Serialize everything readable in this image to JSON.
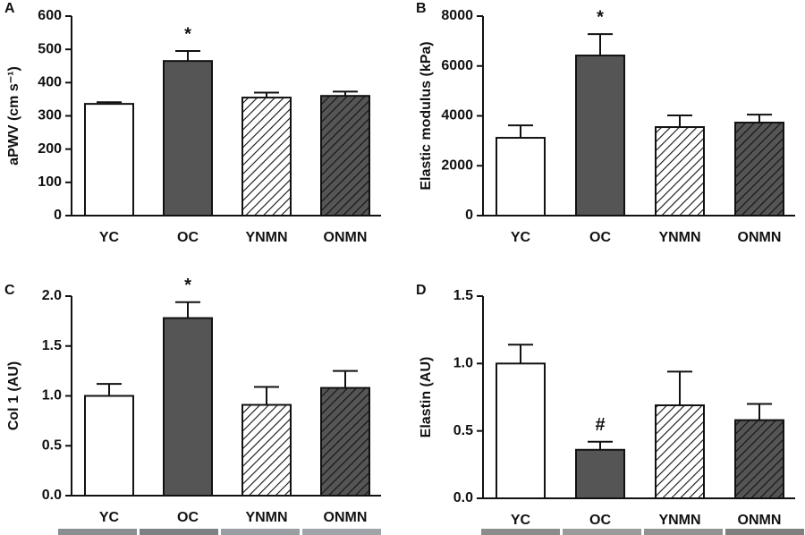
{
  "chart_data": [
    {
      "type": "bar",
      "panel": "A",
      "y_label": "aPWV (cm s⁻¹)",
      "categories": [
        "YC",
        "OC",
        "YNMN",
        "ONMN"
      ],
      "values": [
        336,
        465,
        355,
        360
      ],
      "errors": [
        5,
        30,
        15,
        13
      ],
      "colors": [
        "#ffffff",
        "#555555",
        "#ffffff",
        "#555555"
      ],
      "hatch": [
        false,
        false,
        true,
        true
      ],
      "ylim": [
        0,
        600
      ],
      "yticks": [
        0,
        100,
        200,
        300,
        400,
        500,
        600
      ],
      "annotation": {
        "text": "*",
        "category": "OC"
      }
    },
    {
      "type": "bar",
      "panel": "B",
      "y_label": "Elastic modulus (kPa)",
      "categories": [
        "YC",
        "OC",
        "YNMN",
        "ONMN"
      ],
      "values": [
        3120,
        6420,
        3550,
        3730
      ],
      "errors": [
        500,
        860,
        470,
        320
      ],
      "colors": [
        "#ffffff",
        "#555555",
        "#ffffff",
        "#555555"
      ],
      "hatch": [
        false,
        false,
        true,
        true
      ],
      "ylim": [
        0,
        8000
      ],
      "yticks": [
        0,
        2000,
        4000,
        6000,
        8000
      ],
      "annotation": {
        "text": "*",
        "category": "OC"
      }
    },
    {
      "type": "bar",
      "panel": "C",
      "y_label": "Col 1 (AU)",
      "categories": [
        "YC",
        "OC",
        "YNMN",
        "ONMN"
      ],
      "values": [
        1.0,
        1.78,
        0.91,
        1.08
      ],
      "errors": [
        0.12,
        0.16,
        0.18,
        0.17
      ],
      "colors": [
        "#ffffff",
        "#555555",
        "#ffffff",
        "#555555"
      ],
      "hatch": [
        false,
        false,
        true,
        true
      ],
      "ylim": [
        0,
        2.0
      ],
      "yticks": [
        {
          "value": 0,
          "label": "0.0"
        },
        {
          "value": 0.5,
          "label": "0.5"
        },
        {
          "value": 1,
          "label": "1.0"
        },
        {
          "value": 1.5,
          "label": "1.5"
        },
        {
          "value": 2,
          "label": "2.0"
        }
      ],
      "annotation": {
        "text": "*",
        "category": "OC"
      }
    },
    {
      "type": "bar",
      "panel": "D",
      "y_label": "Elastin (AU)",
      "categories": [
        "YC",
        "OC",
        "YNMN",
        "ONMN"
      ],
      "values": [
        1.0,
        0.36,
        0.69,
        0.58
      ],
      "errors": [
        0.14,
        0.06,
        0.25,
        0.12
      ],
      "colors": [
        "#ffffff",
        "#555555",
        "#ffffff",
        "#555555"
      ],
      "hatch": [
        false,
        false,
        true,
        true
      ],
      "ylim": [
        0,
        1.5
      ],
      "yticks": [
        {
          "value": 0,
          "label": "0.0"
        },
        {
          "value": 0.5,
          "label": "0.5"
        },
        {
          "value": 1,
          "label": "1.0"
        },
        {
          "value": 1.5,
          "label": "1.5"
        }
      ],
      "annotation": {
        "text": "#",
        "category": "OC"
      }
    }
  ]
}
